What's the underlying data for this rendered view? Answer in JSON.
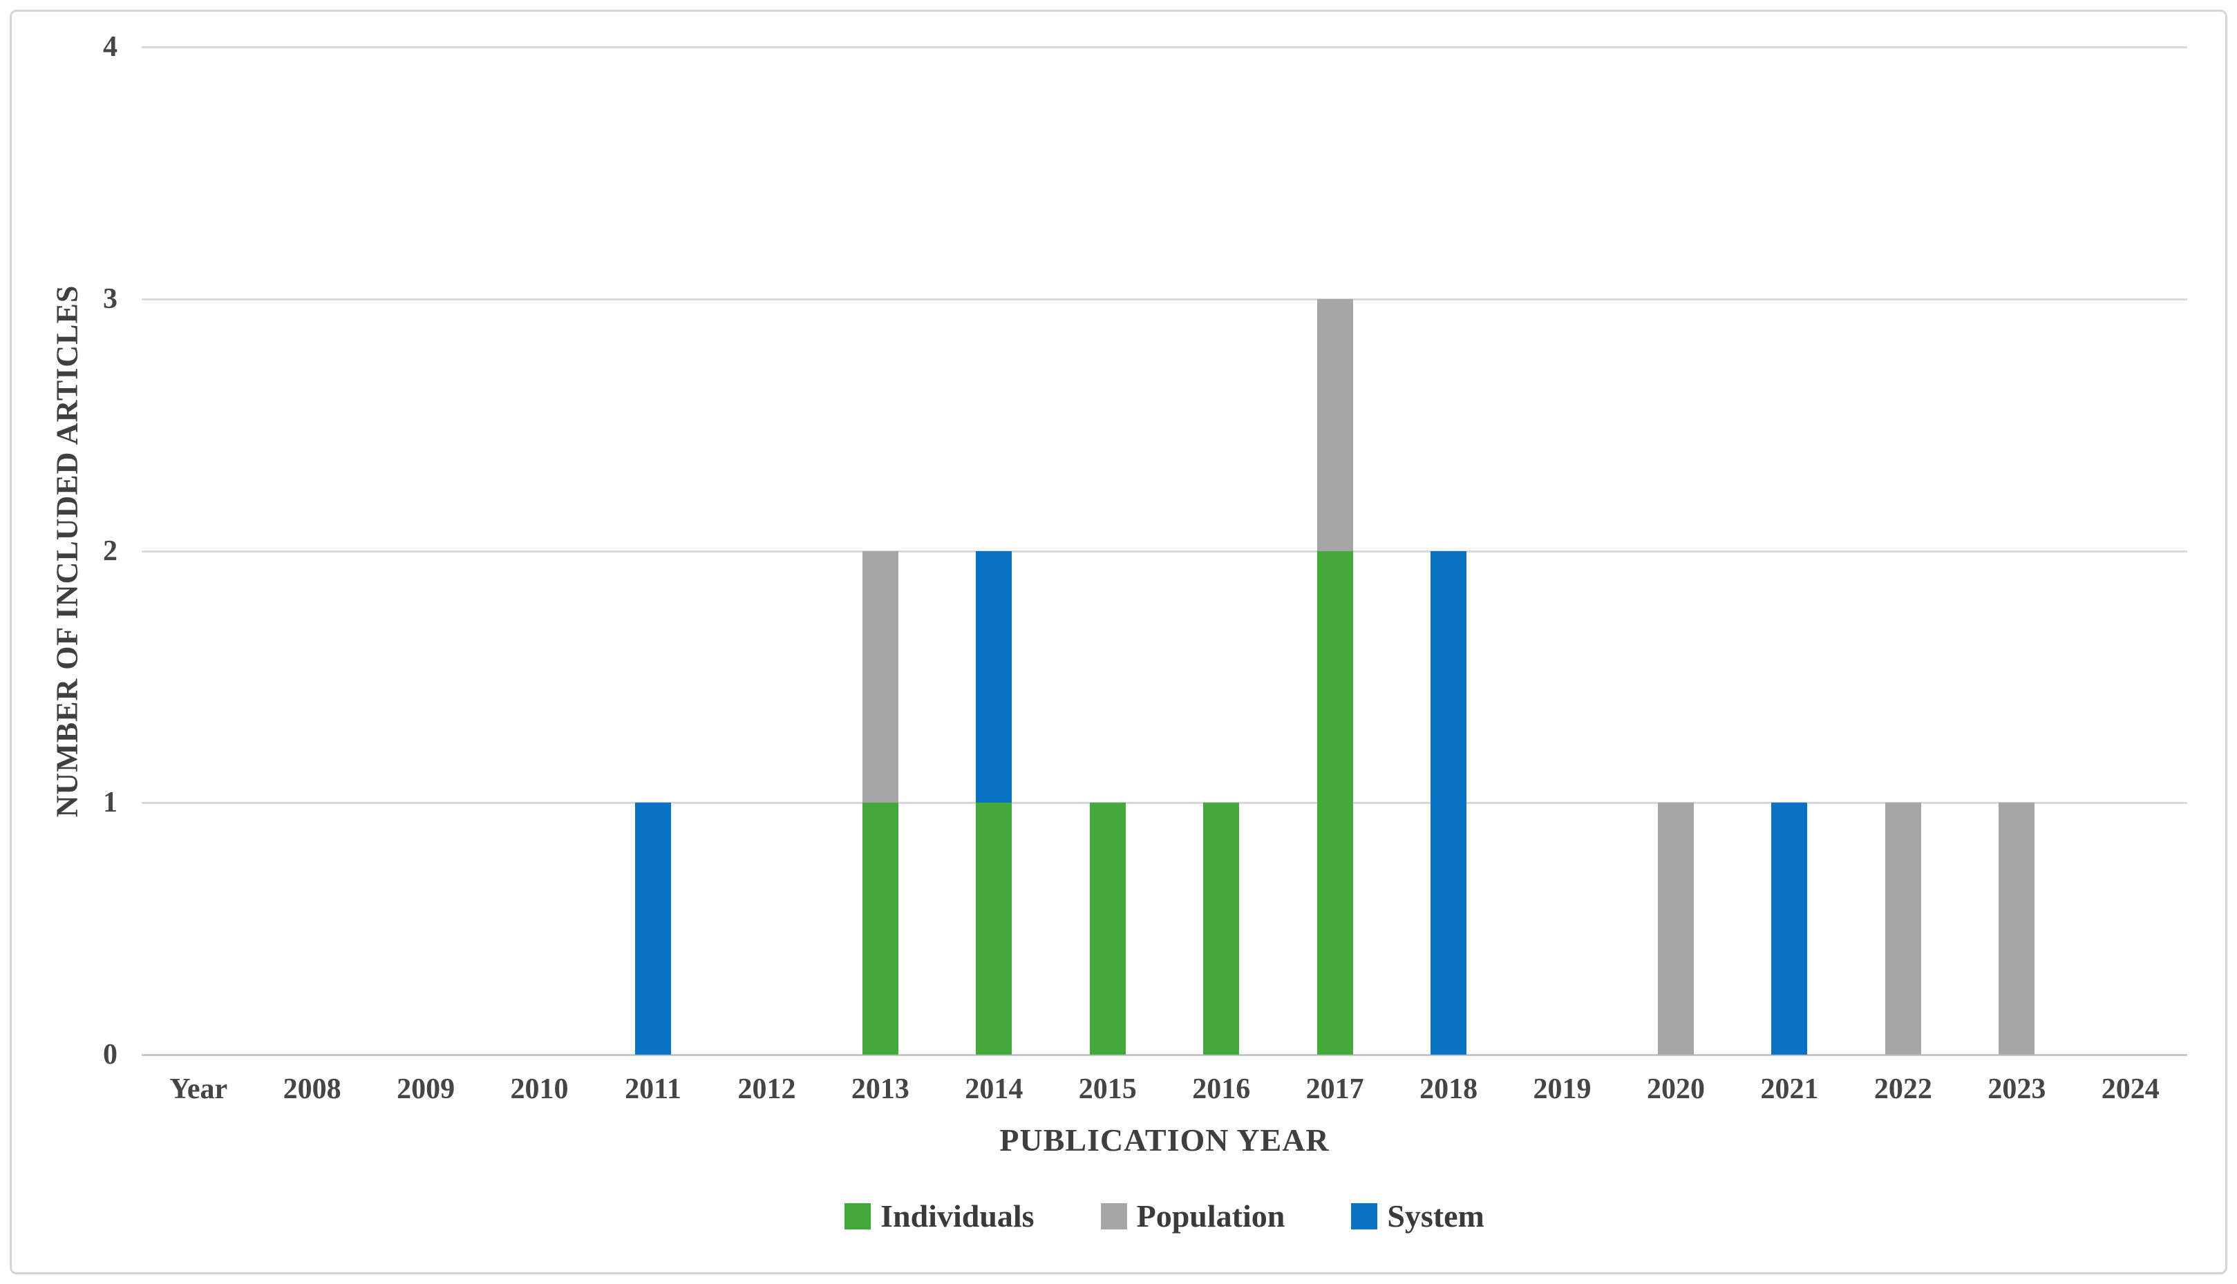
{
  "chart_data": {
    "type": "bar",
    "stacked": true,
    "title": "",
    "xlabel": "PUBLICATION YEAR",
    "ylabel": "NUMBER OF INCLUDED ARTICLES",
    "categories": [
      "Year",
      "2008",
      "2009",
      "2010",
      "2011",
      "2012",
      "2013",
      "2014",
      "2015",
      "2016",
      "2017",
      "2018",
      "2019",
      "2020",
      "2021",
      "2022",
      "2023",
      "2024"
    ],
    "series": [
      {
        "name": "Individuals",
        "color": "#44a93a",
        "values": [
          0,
          0,
          0,
          0,
          0,
          0,
          1,
          1,
          1,
          1,
          2,
          0,
          0,
          0,
          0,
          0,
          0,
          0
        ]
      },
      {
        "name": "Population",
        "color": "#a6a6a6",
        "values": [
          0,
          0,
          0,
          0,
          0,
          0,
          1,
          0,
          0,
          0,
          1,
          0,
          0,
          1,
          0,
          1,
          1,
          0
        ]
      },
      {
        "name": "System",
        "color": "#0a72c2",
        "values": [
          0,
          0,
          0,
          0,
          1,
          0,
          0,
          1,
          0,
          0,
          0,
          2,
          0,
          0,
          1,
          0,
          0,
          0
        ]
      }
    ],
    "ylim": [
      0,
      4
    ],
    "yticks": [
      0,
      1,
      2,
      3,
      4
    ],
    "grid": true,
    "legend_position": "bottom",
    "colors": {
      "gridline": "#d9d9d9",
      "axis_line": "#c6c6c6",
      "tick_text": "#454545",
      "title_text": "#3f3f3f",
      "frame_border": "#d5d5d5",
      "background": "#ffffff"
    }
  }
}
